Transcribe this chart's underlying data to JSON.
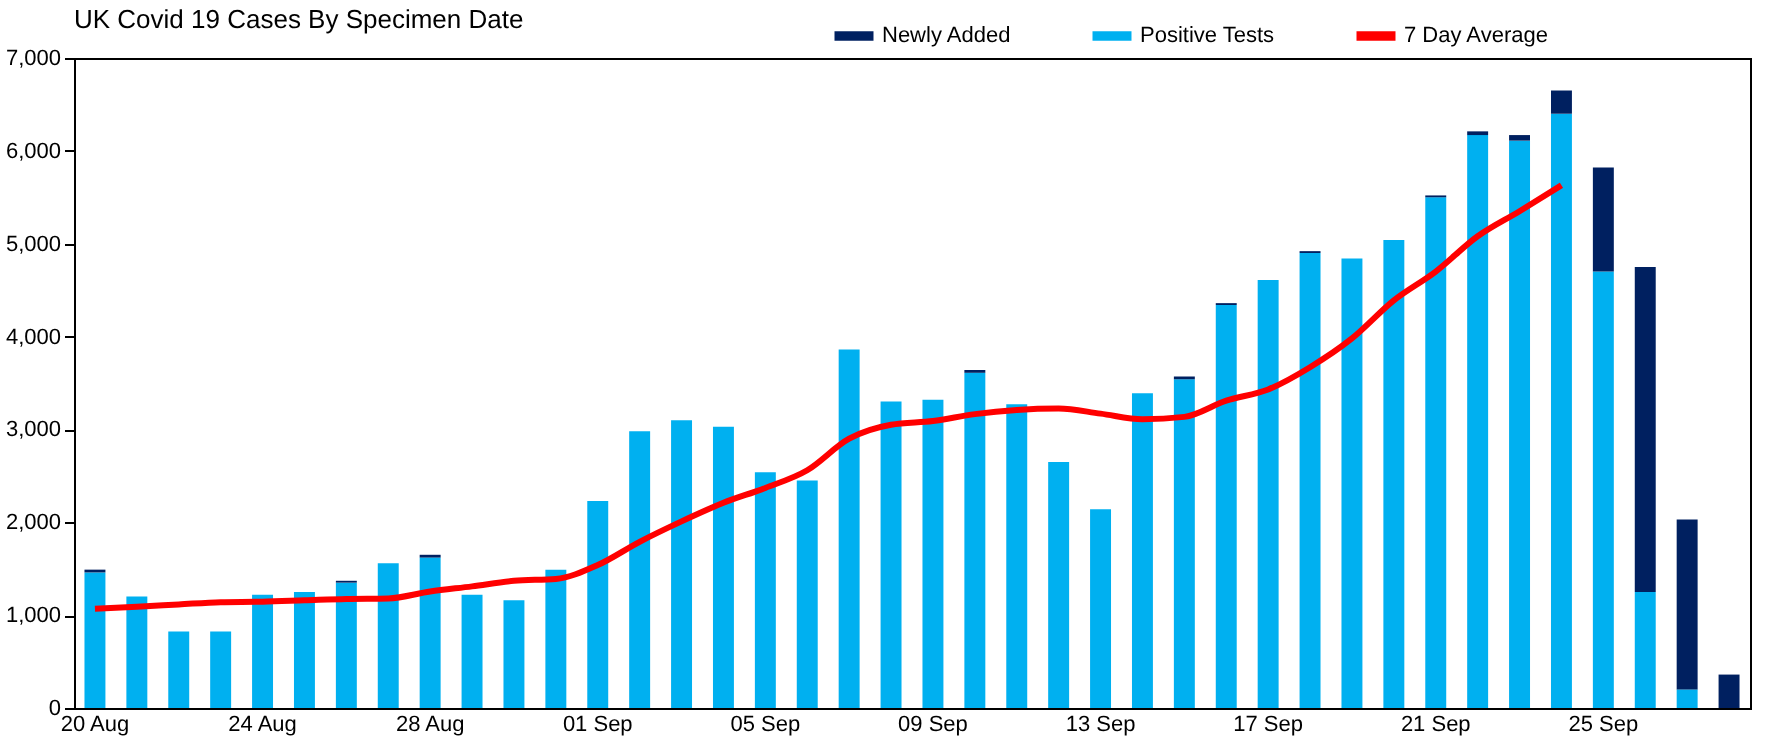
{
  "chart_data": {
    "type": "bar",
    "title": "UK Covid 19 Cases By Specimen Date",
    "stacked": true,
    "categories": [
      "20 Aug",
      null,
      null,
      null,
      "24 Aug",
      null,
      null,
      null,
      "28 Aug",
      null,
      null,
      null,
      "01 Sep",
      null,
      null,
      null,
      "05 Sep",
      null,
      null,
      null,
      "09 Sep",
      null,
      null,
      null,
      "13 Sep",
      null,
      null,
      null,
      "17 Sep",
      null,
      null,
      null,
      "21 Sep",
      null,
      null,
      null,
      "25 Sep",
      null,
      null,
      null
    ],
    "series": [
      {
        "name": "Positive Tests",
        "color": "#00b0f0",
        "values": [
          1460,
          1200,
          825,
          825,
          1220,
          1250,
          1350,
          1560,
          1620,
          1220,
          1160,
          1490,
          2230,
          2980,
          3100,
          3030,
          2540,
          2450,
          3860,
          3300,
          3320,
          3610,
          3270,
          2650,
          2140,
          3390,
          3540,
          4340,
          4610,
          4900,
          4840,
          5040,
          5500,
          6170,
          6110,
          6400,
          4700,
          1250,
          200,
          0
        ]
      },
      {
        "name": "Newly Added",
        "color": "#002060",
        "values": [
          30,
          0,
          0,
          0,
          0,
          0,
          20,
          0,
          30,
          0,
          0,
          0,
          0,
          0,
          0,
          0,
          0,
          0,
          0,
          0,
          0,
          30,
          0,
          0,
          0,
          0,
          30,
          20,
          0,
          20,
          0,
          0,
          20,
          40,
          60,
          250,
          1120,
          3500,
          1830,
          360
        ]
      },
      {
        "name": "7 Day Average",
        "type": "line",
        "color": "#ff0000",
        "values": [
          1070,
          1090,
          1115,
          1140,
          1145,
          1160,
          1175,
          1180,
          1255,
          1310,
          1370,
          1390,
          1540,
          1790,
          2010,
          2210,
          2370,
          2560,
          2900,
          3050,
          3090,
          3165,
          3210,
          3225,
          3170,
          3110,
          3135,
          3310,
          3430,
          3670,
          3980,
          4390,
          4700,
          5080,
          5350,
          5630,
          null,
          null,
          null,
          null
        ]
      }
    ],
    "ylim": [
      0,
      7000
    ],
    "yticks": [
      {
        "value": 0,
        "label": "0"
      },
      {
        "value": 1000,
        "label": "1,000"
      },
      {
        "value": 2000,
        "label": "2,000"
      },
      {
        "value": 3000,
        "label": "3,000"
      },
      {
        "value": 4000,
        "label": "4,000"
      },
      {
        "value": 5000,
        "label": "5,000"
      },
      {
        "value": 6000,
        "label": "6,000"
      },
      {
        "value": 7000,
        "label": "7,000"
      }
    ],
    "grid": false,
    "legend": "top right"
  }
}
